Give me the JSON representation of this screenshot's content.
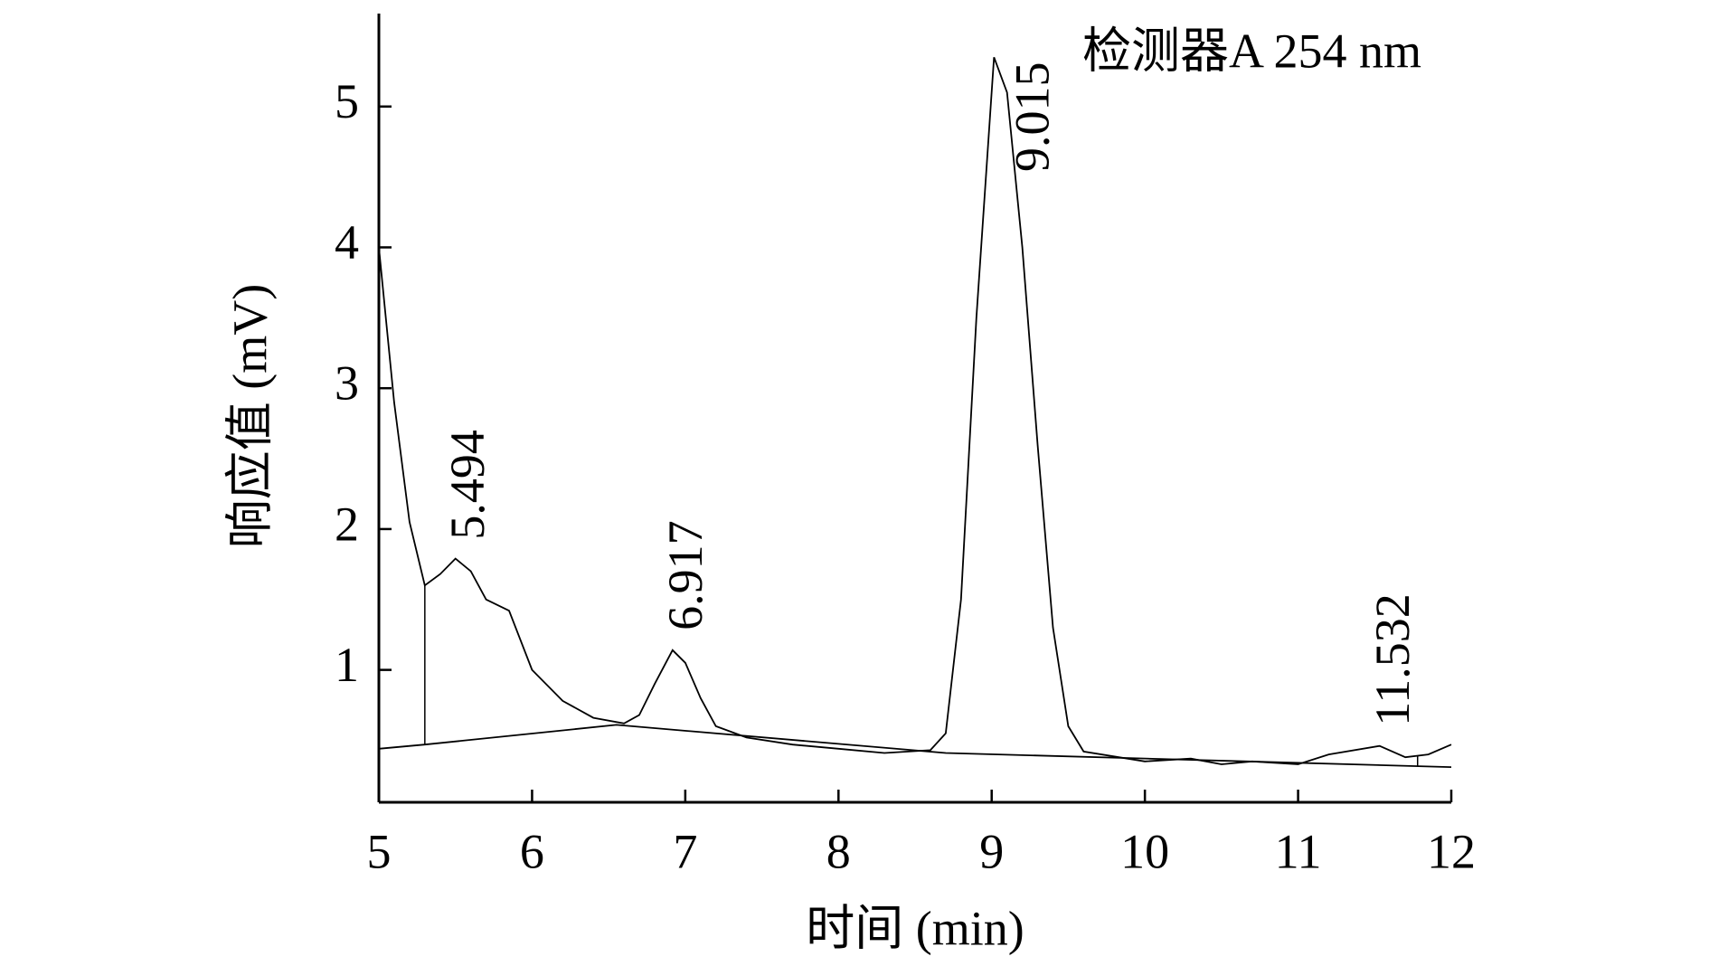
{
  "chart_data": {
    "type": "line",
    "xlabel": "时间 (min)",
    "ylabel": "响应值 (mV)",
    "xlim": [
      5,
      12
    ],
    "xticks": [
      5,
      6,
      7,
      8,
      9,
      10,
      11,
      12
    ],
    "ylim": [
      0.06,
      5.66
    ],
    "yticks": [
      1,
      2,
      3,
      4,
      5
    ],
    "series": [
      {
        "name": "检测器A 254 nm",
        "color": "#000000",
        "x": [
          5.0,
          5.1,
          5.2,
          5.3,
          5.4,
          5.5,
          5.6,
          5.7,
          5.85,
          6.0,
          6.2,
          6.4,
          6.6,
          6.7,
          6.8,
          6.917,
          7.0,
          7.1,
          7.2,
          7.4,
          7.7,
          8.0,
          8.3,
          8.6,
          8.7,
          8.8,
          8.9,
          9.015,
          9.1,
          9.2,
          9.3,
          9.4,
          9.5,
          9.6,
          10.0,
          10.3,
          10.5,
          10.7,
          11.0,
          11.2,
          11.532,
          11.7,
          11.85,
          12.0
        ],
        "values": [
          4.0,
          2.9,
          2.05,
          1.6,
          1.68,
          1.79,
          1.7,
          1.5,
          1.42,
          1.0,
          0.78,
          0.66,
          0.62,
          0.68,
          0.9,
          1.14,
          1.05,
          0.8,
          0.6,
          0.52,
          0.47,
          0.44,
          0.41,
          0.43,
          0.55,
          1.5,
          3.5,
          5.35,
          5.1,
          4.0,
          2.6,
          1.3,
          0.6,
          0.42,
          0.35,
          0.37,
          0.33,
          0.35,
          0.33,
          0.4,
          0.46,
          0.38,
          0.4,
          0.47
        ]
      }
    ],
    "baseline": {
      "x": [
        5.0,
        5.3,
        6.55,
        8.7,
        12.0
      ],
      "values": [
        0.44,
        0.47,
        0.61,
        0.41,
        0.31
      ]
    },
    "drop_lines": [
      5.3,
      11.78
    ],
    "peak_labels": [
      5.494,
      6.917,
      9.015,
      11.532
    ]
  }
}
